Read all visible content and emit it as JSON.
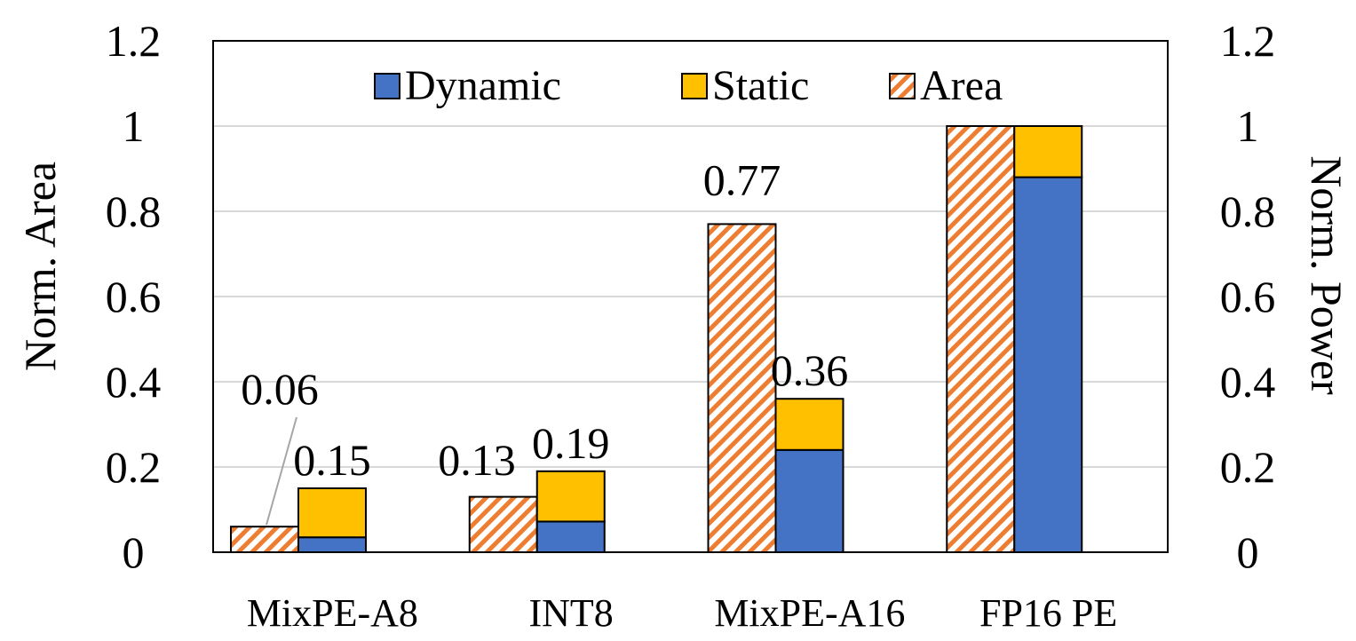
{
  "chart_data": {
    "type": "bar",
    "categories": [
      "MixPE-A8",
      "INT8",
      "MixPE-A16",
      "FP16 PE"
    ],
    "series": [
      {
        "name": "Area",
        "axis": "left",
        "values": [
          0.06,
          0.13,
          0.77,
          1.0
        ]
      },
      {
        "name": "Dynamic",
        "axis": "right",
        "stack": "power",
        "values": [
          0.035,
          0.072,
          0.24,
          0.88
        ]
      },
      {
        "name": "Static",
        "axis": "right",
        "stack": "power",
        "values": [
          0.115,
          0.118,
          0.12,
          0.12
        ]
      }
    ],
    "data_labels": {
      "area": [
        "0.06",
        "0.13",
        "0.77",
        ""
      ],
      "power": [
        "0.15",
        "0.19",
        "0.36",
        ""
      ]
    },
    "ylabel_left": "Norm. Area",
    "ylabel_right": "Norm. Power",
    "ylim": [
      0,
      1.2
    ],
    "yticks": [
      "0",
      "0.2",
      "0.4",
      "0.6",
      "0.8",
      "1",
      "1.2"
    ],
    "grid": true,
    "legend": {
      "placement": "top-center",
      "entries": [
        "Dynamic",
        "Static",
        "Area"
      ]
    },
    "colors": {
      "dynamic": "#4472C4",
      "static": "#FFC000",
      "area_hatch": "#ED7D31",
      "grid": "#D9D9D9"
    }
  }
}
